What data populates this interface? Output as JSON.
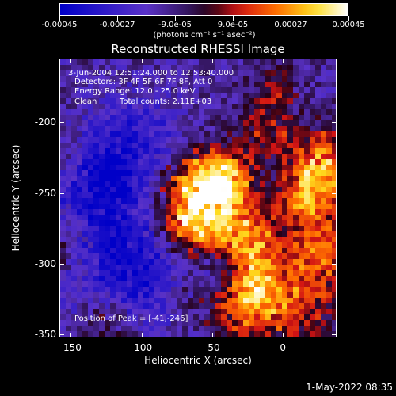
{
  "colorbar": {
    "labels": [
      "-0.00045",
      "-0.00027",
      "-9.0e-05",
      "9.0e-05",
      "0.00027",
      "0.00045"
    ],
    "units": "(photons cm⁻² s⁻¹ asec⁻²)",
    "range": [
      -0.00045,
      0.00045
    ]
  },
  "title": "Reconstructed RHESSI Image",
  "info": {
    "time": "3-Jun-2004 12:51:24.000 to 12:53:40.000",
    "detectors": "Detectors: 3F 4F 5F 6F 7F 8F, Att 0",
    "energy": "Energy Range: 12.0 - 25.0 keV",
    "method": "Clean",
    "counts": "Total counts: 2.11E+03",
    "peak": "Position of Peak = [-41,-246]"
  },
  "axes": {
    "xlabel": "Heliocentric X (arcsec)",
    "ylabel": "Heliocentric Y (arcsec)",
    "xticks": [
      "-150",
      "-100",
      "-50",
      "0"
    ],
    "yticks": [
      "-200",
      "-250",
      "-300",
      "-350"
    ],
    "xrange": [
      -158,
      38
    ],
    "yrange": [
      -352,
      -155
    ]
  },
  "footer": "1-May-2022 08:35"
}
